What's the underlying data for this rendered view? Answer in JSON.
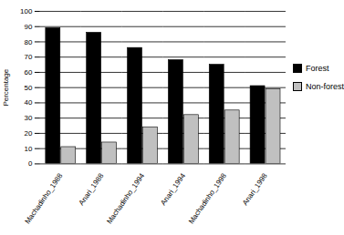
{
  "chart_data": {
    "type": "bar",
    "categories": [
      "Machadinho_1988",
      "Anari_1988",
      "Machadinho_1994",
      "Anari_1994",
      "Machadinho_1998",
      "Anari_1998"
    ],
    "series": [
      {
        "name": "Forest",
        "color": "#000000",
        "values": [
          89,
          86,
          76,
          68,
          65,
          51
        ]
      },
      {
        "name": "Non-forest",
        "color": "#c0c0c0",
        "values": [
          11,
          14,
          24,
          32,
          35,
          49
        ]
      }
    ],
    "y_label": "Percentage",
    "ylim": [
      0,
      100
    ],
    "yticks": [
      0,
      10,
      20,
      30,
      40,
      50,
      60,
      70,
      80,
      90,
      100
    ],
    "grid": true,
    "legend": "right"
  }
}
